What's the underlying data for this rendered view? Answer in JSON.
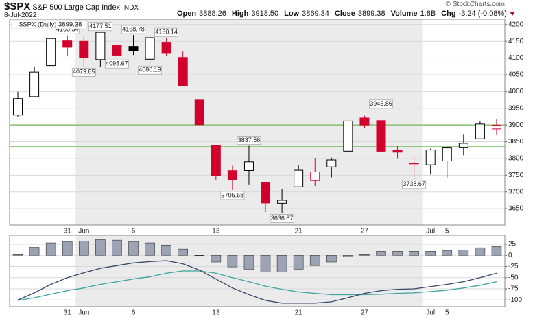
{
  "header": {
    "symbol": "$SPX",
    "name": "S&P 500 Large Cap Index",
    "exchange": "INDX",
    "date": "8-Jul-2022",
    "copyright": "© StockCharts.com",
    "quote": [
      {
        "label": "Open",
        "value": "3888.26"
      },
      {
        "label": "High",
        "value": "3918.50"
      },
      {
        "label": "Low",
        "value": "3869.34"
      },
      {
        "label": "Close",
        "value": "3899.38"
      },
      {
        "label": "Volume",
        "value": "1.8B"
      },
      {
        "label": "Chg",
        "value": "-3.24 (-0.08%)"
      }
    ]
  },
  "chart_data": [
    {
      "type": "candlestick",
      "label": "$SPX (Daily) 3899.38",
      "categories": [
        null,
        null,
        null,
        "31",
        "Jun",
        null,
        null,
        "6",
        null,
        null,
        null,
        null,
        "13",
        null,
        null,
        null,
        null,
        "21",
        null,
        null,
        null,
        "27",
        null,
        null,
        null,
        "Jul",
        "5",
        null,
        null,
        null
      ],
      "open": [
        3929.59,
        3984.6,
        4077.43,
        4151.09,
        4149.78,
        4095.41,
        4137.57,
        4134.72,
        4096.47,
        4147.12,
        4101.65,
        3974.39,
        3838.15,
        3763.52,
        3764.05,
        3728.18,
        3665.9,
        3715.31,
        3733.89,
        3774.71,
        3821.75,
        3920.76,
        3913.0,
        3825.09,
        3785.99,
        3781.0,
        3792.61,
        3831.98,
        3858.85,
        3888.26
      ],
      "high": [
        3999.33,
        4075.14,
        4158.49,
        4168.34,
        4166.54,
        4177.51,
        4142.67,
        4168.78,
        4164.86,
        4160.14,
        4119.1,
        3974.39,
        3838.15,
        3778.18,
        3837.56,
        3728.18,
        3707.71,
        3779.65,
        3801.79,
        3802.58,
        3913.65,
        3927.72,
        3945.86,
        3836.5,
        3807.5,
        3829.82,
        3832.19,
        3870.91,
        3910.63,
        3918.5
      ],
      "low": [
        3925.03,
        3984.6,
        4077.43,
        4104.88,
        4073.85,
        4074.37,
        4098.67,
        4109.18,
        4080.19,
        4107.2,
        4017.17,
        3900.16,
        3734.3,
        3705.68,
        3722.3,
        3639.77,
        3636.87,
        3715.31,
        3717.69,
        3743.52,
        3821.75,
        3889.66,
        3820.14,
        3799.02,
        3738.67,
        3752.1,
        3742.06,
        3809.37,
        3858.85,
        3869.34
      ],
      "close": [
        3978.73,
        4057.84,
        4158.24,
        4132.15,
        4101.23,
        4176.82,
        4108.54,
        4121.43,
        4160.68,
        4115.77,
        4017.82,
        3900.86,
        3749.63,
        3735.48,
        3789.99,
        3666.77,
        3674.84,
        3764.79,
        3759.89,
        3795.73,
        3911.74,
        3900.11,
        3821.55,
        3818.83,
        3785.38,
        3825.33,
        3831.39,
        3845.08,
        3902.62,
        3899.38
      ],
      "high_labels": [
        null,
        null,
        null,
        "4168.34",
        null,
        "4177.51",
        null,
        "4168.78",
        null,
        "4160.14",
        null,
        null,
        null,
        null,
        "3837.56",
        null,
        null,
        null,
        null,
        null,
        null,
        null,
        "3945.86",
        null,
        null,
        null,
        null,
        null,
        null,
        null
      ],
      "low_labels": [
        null,
        null,
        null,
        null,
        "4073.85",
        null,
        "4098.67",
        null,
        "4080.19",
        null,
        null,
        null,
        null,
        "3705.68",
        null,
        null,
        "3636.87",
        null,
        null,
        null,
        null,
        null,
        null,
        null,
        "3738.67",
        null,
        null,
        null,
        null,
        null
      ],
      "up_color": "#000000",
      "down_color": "#d1002c",
      "hlines": [
        3900,
        3835
      ],
      "hline_color": "#86c26f",
      "ylim": [
        3601,
        4216
      ],
      "yticks": [
        3650,
        3700,
        3750,
        3800,
        3850,
        3900,
        3950,
        4000,
        4050,
        4100,
        4150,
        4200
      ],
      "grid": true
    },
    {
      "type": "macd",
      "histogram": {
        "color": "#9ba3b4",
        "values": [
          3,
          18,
          28,
          31,
          32,
          35,
          34,
          31,
          28,
          23,
          14,
          0,
          -15,
          -26,
          -31,
          -37,
          -37,
          -31,
          -23,
          -15,
          -3,
          3,
          9,
          9,
          9,
          9,
          11,
          12,
          17,
          20
        ]
      },
      "macd": {
        "color": "#36456a",
        "values": [
          -100,
          -84,
          -65,
          -50,
          -39,
          -29,
          -23,
          -17,
          -14,
          -12,
          -19,
          -33,
          -53,
          -73,
          -88,
          -101,
          -107,
          -107,
          -107,
          -104,
          -95,
          -85,
          -79,
          -76,
          -75,
          -70,
          -65,
          -59,
          -50,
          -40
        ]
      },
      "signal": {
        "color": "#3ea59e",
        "values": [
          -101,
          -95,
          -87,
          -79,
          -73,
          -65,
          -59,
          -53,
          -48,
          -40,
          -35,
          -35,
          -40,
          -50,
          -59,
          -69,
          -76,
          -82,
          -85,
          -88,
          -88,
          -88,
          -87,
          -85,
          -84,
          -81,
          -78,
          -73,
          -67,
          -59
        ]
      },
      "ylim": [
        -115,
        45
      ],
      "yticks": [
        25,
        0,
        -25,
        -50,
        -75,
        -100
      ],
      "grid": true
    }
  ]
}
